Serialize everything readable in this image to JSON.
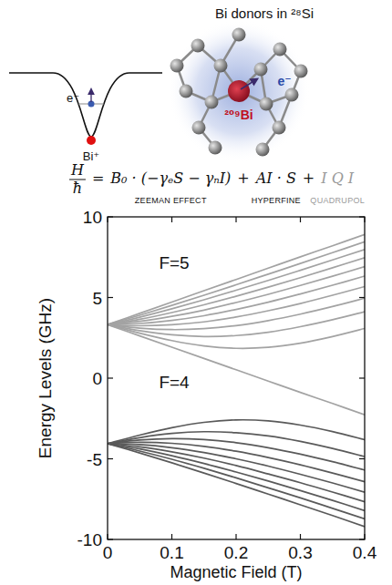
{
  "header": {
    "title": "Bi donors in ²⁸Si"
  },
  "diagram": {
    "well_charge": "Bi⁺",
    "well_electron": "e⁻",
    "lattice_atom": "²⁰⁹Bi",
    "lattice_electron": "e⁻"
  },
  "equation": {
    "lhs_numerator": "H",
    "lhs_denominator": "ħ",
    "equals": "=",
    "operator": "+",
    "terms": [
      {
        "text": "B₀ · (−γₑS − γₙI)",
        "label": "ZEEMAN EFFECT"
      },
      {
        "text": "AI · S",
        "label": "HYPERFINE"
      },
      {
        "text": "I Q I",
        "label": "QUADRUPOL",
        "color": "#9a9a9a"
      }
    ]
  },
  "chart_data": {
    "type": "line",
    "x_label": "Magnetic Field (T)",
    "y_label": "Energy Levels (GHz)",
    "x": [
      0,
      0.05,
      0.1,
      0.15,
      0.2,
      0.25,
      0.3,
      0.35,
      0.4
    ],
    "xlim": [
      0,
      0.4
    ],
    "ylim": [
      -10,
      10
    ],
    "xticks": [
      0,
      0.1,
      0.2,
      0.3,
      0.4
    ],
    "yticks": [
      -10,
      -5,
      0,
      5,
      10
    ],
    "grid": false,
    "annotations": [
      {
        "text": "F=5",
        "x": 0.08,
        "y": 7.2
      },
      {
        "text": "F=4",
        "x": 0.08,
        "y": -0.2
      }
    ],
    "series": [
      {
        "color": "#a3a3a3",
        "values": [
          3.32,
          4.02,
          4.72,
          5.42,
          6.12,
          6.82,
          7.52,
          8.21,
          8.91
        ]
      },
      {
        "color": "#a3a3a3",
        "values": [
          3.32,
          3.9,
          4.51,
          5.14,
          5.79,
          6.45,
          7.11,
          7.78,
          8.46
        ]
      },
      {
        "color": "#a3a3a3",
        "values": [
          3.32,
          3.78,
          4.3,
          4.86,
          5.45,
          6.06,
          6.69,
          7.33,
          7.98
        ]
      },
      {
        "color": "#a3a3a3",
        "values": [
          3.32,
          3.65,
          4.07,
          4.55,
          5.08,
          5.64,
          6.23,
          6.84,
          7.47
        ]
      },
      {
        "color": "#a3a3a3",
        "values": [
          3.32,
          3.52,
          3.83,
          4.22,
          4.69,
          5.2,
          5.75,
          6.32,
          6.92
        ]
      },
      {
        "color": "#a3a3a3",
        "values": [
          3.32,
          3.39,
          3.58,
          3.87,
          4.26,
          4.71,
          5.22,
          5.76,
          6.33
        ]
      },
      {
        "color": "#a3a3a3",
        "values": [
          3.32,
          3.25,
          3.31,
          3.49,
          3.79,
          4.18,
          4.63,
          5.14,
          5.68
        ]
      },
      {
        "color": "#a3a3a3",
        "values": [
          3.32,
          3.1,
          3.01,
          3.07,
          3.26,
          3.57,
          3.97,
          4.44,
          4.96
        ]
      },
      {
        "color": "#a3a3a3",
        "values": [
          3.32,
          2.95,
          2.69,
          2.58,
          2.64,
          2.85,
          3.19,
          3.62,
          4.12
        ]
      },
      {
        "color": "#a3a3a3",
        "values": [
          3.32,
          2.79,
          2.33,
          2.0,
          1.85,
          1.91,
          2.17,
          2.58,
          3.08
        ]
      },
      {
        "color": "#a3a3a3",
        "values": [
          3.32,
          2.62,
          1.92,
          1.22,
          0.52,
          -0.18,
          -0.88,
          -1.57,
          -2.27
        ]
      },
      {
        "color": "#5a5a5a",
        "values": [
          -4.06,
          -4.64,
          -5.25,
          -5.88,
          -6.53,
          -7.19,
          -7.85,
          -8.52,
          -9.2
        ]
      },
      {
        "color": "#5a5a5a",
        "values": [
          -4.06,
          -4.52,
          -5.03,
          -5.59,
          -6.18,
          -6.8,
          -7.42,
          -8.07,
          -8.72
        ]
      },
      {
        "color": "#5a5a5a",
        "values": [
          -4.06,
          -4.39,
          -4.81,
          -5.29,
          -5.82,
          -6.38,
          -6.97,
          -7.58,
          -8.21
        ]
      },
      {
        "color": "#5a5a5a",
        "values": [
          -4.06,
          -4.26,
          -4.57,
          -4.96,
          -5.42,
          -5.94,
          -6.48,
          -7.06,
          -7.66
        ]
      },
      {
        "color": "#5a5a5a",
        "values": [
          -4.06,
          -4.12,
          -4.31,
          -4.61,
          -5.0,
          -5.45,
          -5.96,
          -6.5,
          -7.07
        ]
      },
      {
        "color": "#5a5a5a",
        "values": [
          -4.06,
          -3.98,
          -4.04,
          -4.23,
          -4.53,
          -4.92,
          -5.37,
          -5.88,
          -6.42
        ]
      },
      {
        "color": "#5a5a5a",
        "values": [
          -4.06,
          -3.84,
          -3.75,
          -3.81,
          -4.0,
          -4.31,
          -4.71,
          -5.18,
          -5.7
        ]
      },
      {
        "color": "#5a5a5a",
        "values": [
          -4.06,
          -3.69,
          -3.43,
          -3.32,
          -3.38,
          -3.58,
          -3.92,
          -4.36,
          -4.86
        ]
      },
      {
        "color": "#5a5a5a",
        "values": [
          -4.06,
          -3.53,
          -3.07,
          -2.74,
          -2.59,
          -2.65,
          -2.91,
          -3.31,
          -3.82
        ]
      }
    ]
  }
}
